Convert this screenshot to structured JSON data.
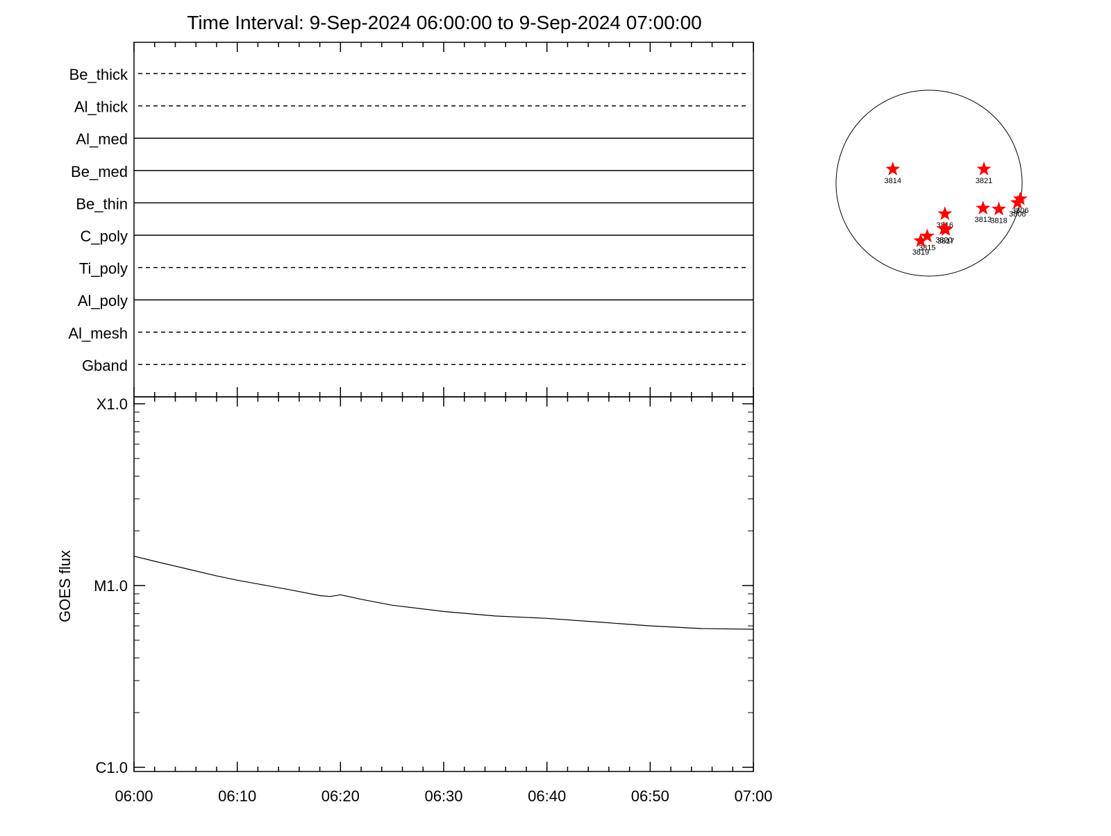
{
  "title": "Time Interval:  9-Sep-2024 06:00:00 to  9-Sep-2024 07:00:00",
  "colors": {
    "star": "#ff0000",
    "line": "#000000",
    "background": "#ffffff"
  },
  "chart_data": [
    {
      "type": "timeline",
      "name": "filter-bands",
      "rows": [
        {
          "label": "Be_thick",
          "style": "dashed"
        },
        {
          "label": "Al_thick",
          "style": "dashed"
        },
        {
          "label": "Al_med",
          "style": "solid"
        },
        {
          "label": "Be_med",
          "style": "solid"
        },
        {
          "label": "Be_thin",
          "style": "solid"
        },
        {
          "label": "C_poly",
          "style": "solid"
        },
        {
          "label": "Ti_poly",
          "style": "dashed"
        },
        {
          "label": "Al_poly",
          "style": "solid"
        },
        {
          "label": "Al_mesh",
          "style": "dashed"
        },
        {
          "label": "Gband",
          "style": "dashed"
        }
      ],
      "xlim": [
        "06:00",
        "07:00"
      ]
    },
    {
      "type": "line",
      "name": "goes-flux",
      "ylabel": "GOES flux",
      "yscale": "log",
      "ylim": [
        1e-06,
        0.0001
      ],
      "yticks": [
        {
          "value": 0.0001,
          "label": "X1.0"
        },
        {
          "value": 1e-05,
          "label": "M1.0"
        },
        {
          "value": 1e-06,
          "label": "C1.0"
        }
      ],
      "xticks": [
        "06:00",
        "06:10",
        "06:20",
        "06:30",
        "06:40",
        "06:50",
        "07:00"
      ],
      "x": [
        0,
        2,
        5,
        8,
        10,
        12,
        15,
        18,
        19,
        20,
        22,
        25,
        30,
        35,
        40,
        45,
        50,
        55,
        60
      ],
      "y": [
        1.45e-05,
        1.36e-05,
        1.24e-05,
        1.13e-05,
        1.07e-05,
        1.02e-05,
        9.5e-06,
        8.8e-06,
        8.7e-06,
        8.9e-06,
        8.4e-06,
        7.8e-06,
        7.2e-06,
        6.8e-06,
        6.6e-06,
        6.3e-06,
        6e-06,
        5.8e-06,
        5.75e-06
      ]
    },
    {
      "type": "scatter",
      "name": "solar-disk-active-regions",
      "points": [
        {
          "label": "3814",
          "x": -0.39,
          "y": 0.15
        },
        {
          "label": "3821",
          "x": 0.59,
          "y": 0.15
        },
        {
          "label": "3806",
          "x": 0.98,
          "y": -0.17
        },
        {
          "label": "3808",
          "x": 0.95,
          "y": -0.21
        },
        {
          "label": "3813",
          "x": 0.58,
          "y": -0.27
        },
        {
          "label": "3818",
          "x": 0.75,
          "y": -0.28
        },
        {
          "label": "3816",
          "x": 0.17,
          "y": -0.33
        },
        {
          "label": "3820",
          "x": 0.16,
          "y": -0.49
        },
        {
          "label": "3817",
          "x": 0.18,
          "y": -0.5
        },
        {
          "label": "3815",
          "x": -0.02,
          "y": -0.57
        },
        {
          "label": "3819",
          "x": -0.09,
          "y": -0.62
        }
      ]
    }
  ]
}
